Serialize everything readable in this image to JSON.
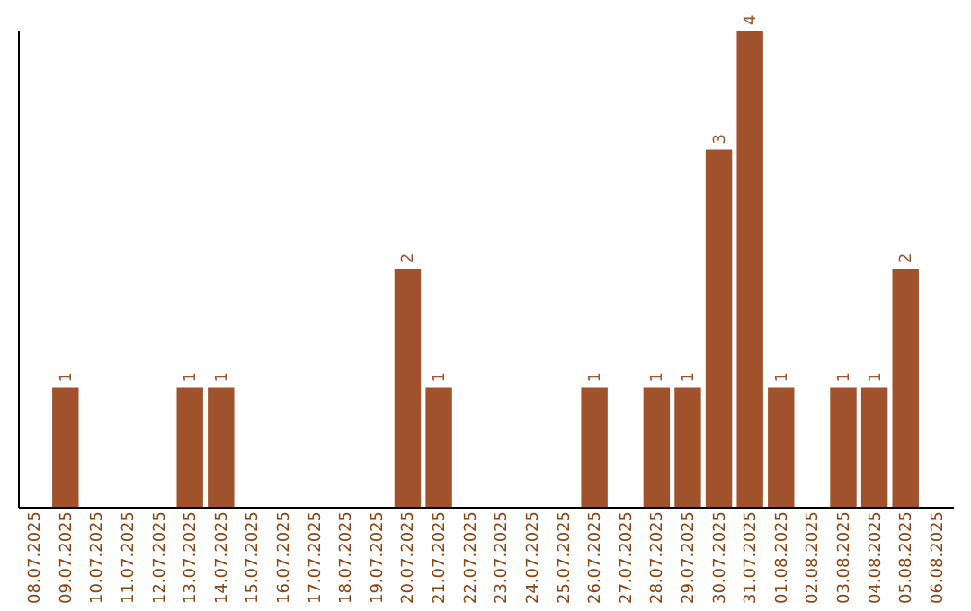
{
  "chart_data": {
    "type": "bar",
    "categories": [
      "08.07.2025",
      "09.07.2025",
      "10.07.2025",
      "11.07.2025",
      "12.07.2025",
      "13.07.2025",
      "14.07.2025",
      "15.07.2025",
      "16.07.2025",
      "17.07.2025",
      "18.07.2025",
      "19.07.2025",
      "20.07.2025",
      "21.07.2025",
      "22.07.2025",
      "23.07.2025",
      "24.07.2025",
      "25.07.2025",
      "26.07.2025",
      "27.07.2025",
      "28.07.2025",
      "29.07.2025",
      "30.07.2025",
      "31.07.2025",
      "01.08.2025",
      "02.08.2025",
      "03.08.2025",
      "04.08.2025",
      "05.08.2025",
      "06.08.2025"
    ],
    "values": [
      0,
      1,
      0,
      0,
      0,
      1,
      1,
      0,
      0,
      0,
      0,
      0,
      2,
      1,
      0,
      0,
      0,
      0,
      1,
      0,
      1,
      1,
      3,
      4,
      1,
      0,
      1,
      1,
      2,
      0
    ],
    "value_labels": [
      null,
      "1",
      null,
      null,
      null,
      "1",
      "1",
      null,
      null,
      null,
      null,
      null,
      "2",
      "1",
      null,
      null,
      null,
      null,
      "1",
      null,
      "1",
      "1",
      "3",
      "4",
      "1",
      null,
      "1",
      "1",
      "2",
      null
    ],
    "color": "#a0522d",
    "grid": false,
    "tick_labels": "x"
  }
}
